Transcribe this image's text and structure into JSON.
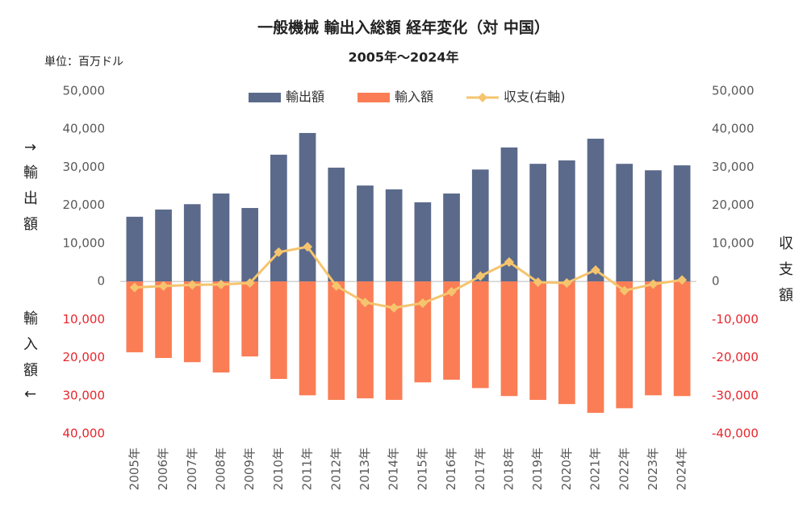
{
  "chart_data": {
    "type": "bar_line",
    "title": "一般機械 輸出入総額 経年変化（対 中国）",
    "subtitle": "2005年～2024年",
    "unit_label": "単位：百万ドル",
    "y_label_top": "↑輸出額",
    "y_label_bottom": "輸入額↓",
    "y2_label": "収支額",
    "categories": [
      "2005年",
      "2006年",
      "2007年",
      "2008年",
      "2009年",
      "2010年",
      "2011年",
      "2012年",
      "2013年",
      "2014年",
      "2015年",
      "2016年",
      "2017年",
      "2018年",
      "2019年",
      "2020年",
      "2021年",
      "2022年",
      "2023年",
      "2024年"
    ],
    "series": [
      {
        "name": "輸出額",
        "type": "bar",
        "color": "#5b6a8b",
        "values": [
          17000,
          18900,
          20300,
          23100,
          19300,
          33300,
          39000,
          29900,
          25200,
          24200,
          20800,
          23100,
          29400,
          35200,
          30900,
          31800,
          37500,
          30900,
          29200,
          30500
        ]
      },
      {
        "name": "輸入額",
        "type": "bar",
        "color": "#fb7d55",
        "values": [
          -18600,
          -20100,
          -21200,
          -23900,
          -19700,
          -25600,
          -29900,
          -31100,
          -30700,
          -31100,
          -26500,
          -25800,
          -28000,
          -30100,
          -31100,
          -32200,
          -34500,
          -33300,
          -29900,
          -30100
        ]
      },
      {
        "name": "収支(右軸)",
        "type": "line",
        "axis": "y2",
        "color": "#f5c46e",
        "values": [
          -1600,
          -1200,
          -900,
          -800,
          -400,
          7700,
          9100,
          -1200,
          -5500,
          -6900,
          -5700,
          -2700,
          1400,
          5100,
          -200,
          -400,
          3000,
          -2400,
          -700,
          400
        ]
      }
    ],
    "ylim": [
      -40000,
      50000
    ],
    "yticks": [
      {
        "value": 50000,
        "label": "50,000"
      },
      {
        "value": 40000,
        "label": "40,000"
      },
      {
        "value": 30000,
        "label": "30,000"
      },
      {
        "value": 20000,
        "label": "20,000"
      },
      {
        "value": 10000,
        "label": "10,000"
      },
      0,
      {
        "value": -10000,
        "label": "10,000"
      },
      {
        "value": -20000,
        "label": "20,000"
      },
      {
        "value": -30000,
        "label": "30,000"
      },
      {
        "value": -40000,
        "label": "40,000"
      }
    ],
    "y2lim": [
      -40000,
      50000
    ],
    "y2ticks": [
      {
        "value": 50000,
        "label": "50,000"
      },
      {
        "value": 40000,
        "label": "40,000"
      },
      {
        "value": 30000,
        "label": "30,000"
      },
      {
        "value": 20000,
        "label": "20,000"
      },
      {
        "value": 10000,
        "label": "10,000"
      },
      0,
      {
        "value": -10000,
        "label": "-10,000"
      },
      {
        "value": -20000,
        "label": "-20,000"
      },
      {
        "value": -30000,
        "label": "-30,000"
      },
      {
        "value": -40000,
        "label": "-40,000"
      }
    ],
    "negative_tick_color": "#e8262d",
    "legend": "top"
  }
}
